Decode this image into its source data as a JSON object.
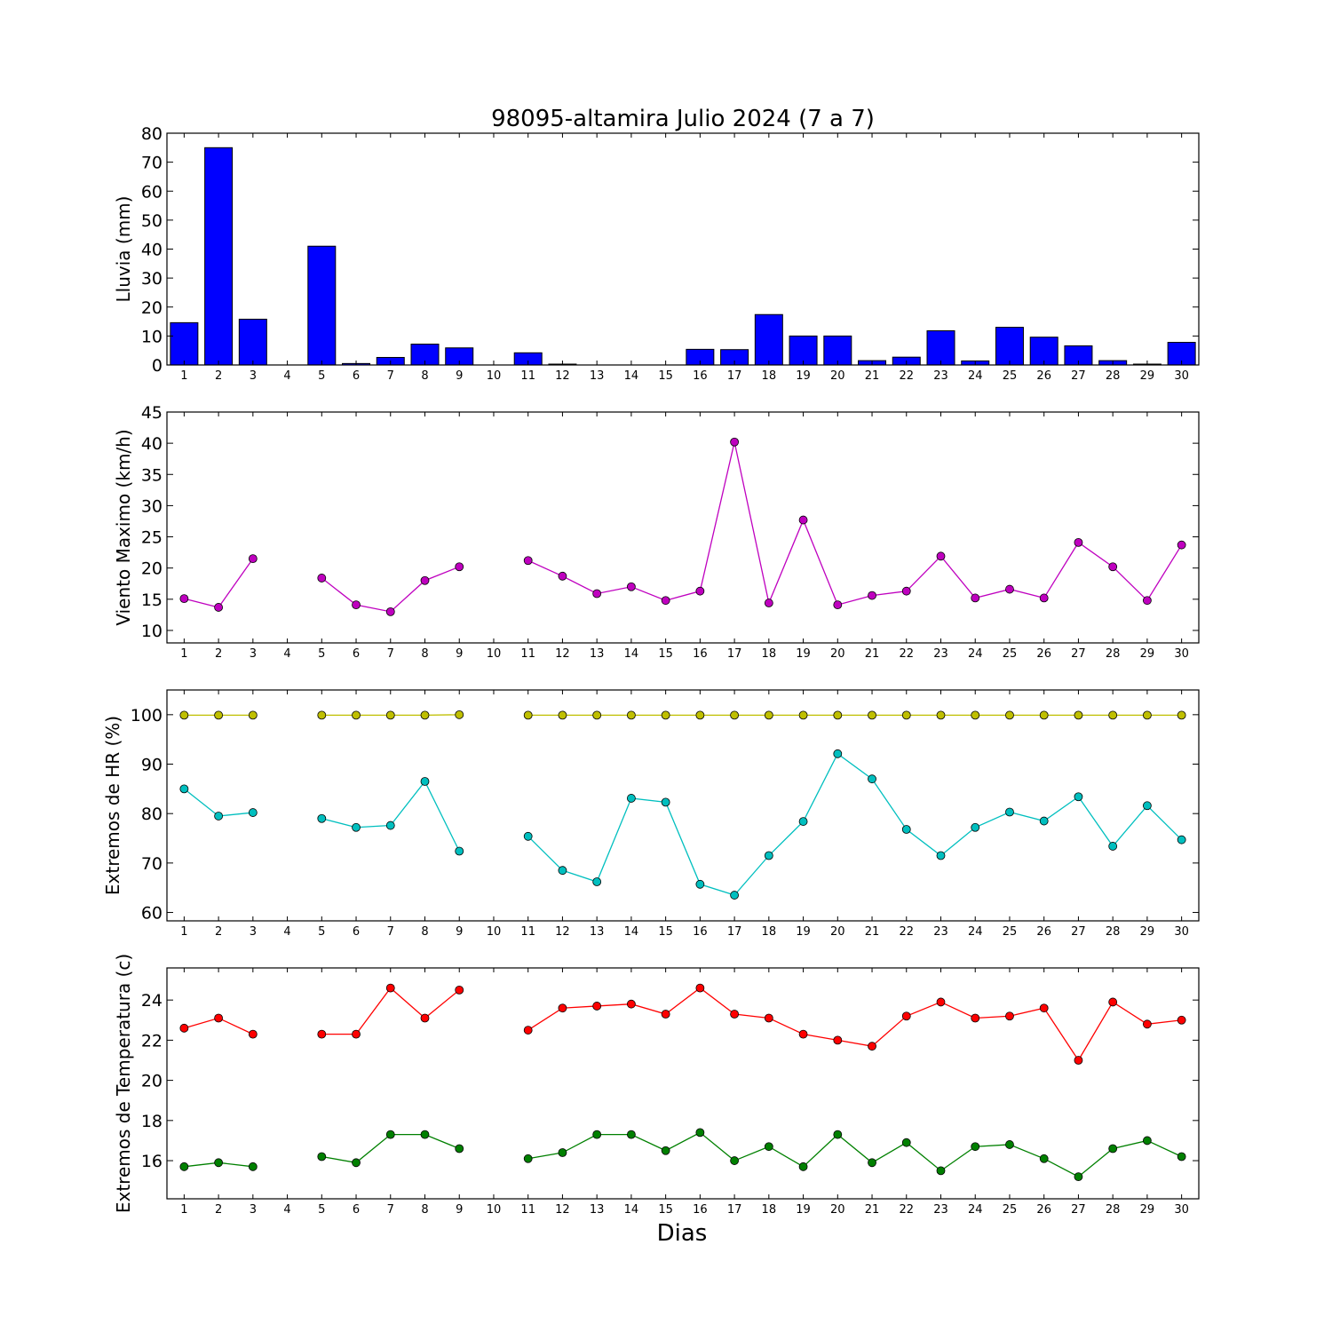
{
  "chart_data": [
    {
      "type": "bar",
      "title": "98095-altamira Julio 2024  (7 a 7)",
      "ylabel": "Lluvia (mm)",
      "xlabel": "",
      "x": [
        1,
        2,
        3,
        4,
        5,
        6,
        7,
        8,
        9,
        10,
        11,
        12,
        13,
        14,
        15,
        16,
        17,
        18,
        19,
        20,
        21,
        22,
        23,
        24,
        25,
        26,
        27,
        28,
        29,
        30
      ],
      "ylim": [
        0,
        80
      ],
      "yticks": [
        0,
        10,
        20,
        30,
        40,
        50,
        60,
        70,
        80
      ],
      "series": [
        {
          "values": [
            14.6,
            75.0,
            15.8,
            0,
            41.0,
            0.5,
            2.6,
            7.2,
            5.9,
            0,
            4.2,
            0.3,
            0,
            0,
            0,
            5.4,
            5.3,
            17.4,
            10.0,
            10.0,
            1.5,
            2.7,
            11.8,
            1.4,
            13.0,
            9.6,
            6.6,
            1.5,
            0.3,
            7.8
          ],
          "color": "#0000ff"
        }
      ]
    },
    {
      "type": "line",
      "title": "",
      "ylabel": "Viento Maximo (km/h)",
      "xlabel": "",
      "x": [
        1,
        2,
        3,
        4,
        5,
        6,
        7,
        8,
        9,
        10,
        11,
        12,
        13,
        14,
        15,
        16,
        17,
        18,
        19,
        20,
        21,
        22,
        23,
        24,
        25,
        26,
        27,
        28,
        29,
        30
      ],
      "ylim": [
        8,
        45
      ],
      "yticks": [
        10,
        15,
        20,
        25,
        30,
        35,
        40,
        45
      ],
      "series": [
        {
          "values": [
            15.1,
            13.7,
            21.5,
            null,
            18.4,
            14.1,
            13.0,
            18.0,
            20.2,
            null,
            21.2,
            18.7,
            15.9,
            17.0,
            14.8,
            16.3,
            40.2,
            14.4,
            27.7,
            14.1,
            15.6,
            16.3,
            21.9,
            15.2,
            16.6,
            15.2,
            24.1,
            20.2,
            14.8,
            23.7
          ],
          "color": "#bf00bf"
        }
      ]
    },
    {
      "type": "line",
      "title": "",
      "ylabel": "Extremos de HR (%)",
      "xlabel": "",
      "x": [
        1,
        2,
        3,
        4,
        5,
        6,
        7,
        8,
        9,
        10,
        11,
        12,
        13,
        14,
        15,
        16,
        17,
        18,
        19,
        20,
        21,
        22,
        23,
        24,
        25,
        26,
        27,
        28,
        29,
        30
      ],
      "ylim": [
        58.3,
        105
      ],
      "yticks": [
        60,
        70,
        80,
        90,
        100
      ],
      "series": [
        {
          "values": [
            99.9,
            99.9,
            99.9,
            null,
            99.9,
            99.9,
            99.9,
            99.9,
            100.0,
            null,
            99.9,
            99.9,
            99.9,
            99.9,
            99.9,
            99.9,
            99.9,
            99.9,
            99.9,
            99.9,
            99.9,
            99.9,
            99.9,
            99.9,
            99.9,
            99.9,
            99.9,
            99.9,
            99.9,
            99.9
          ],
          "color": "#bfbf00"
        },
        {
          "values": [
            85.0,
            79.5,
            80.2,
            null,
            79.0,
            77.2,
            77.6,
            86.5,
            72.4,
            null,
            75.4,
            68.5,
            66.2,
            83.1,
            82.3,
            65.7,
            63.5,
            71.5,
            78.4,
            92.1,
            87.0,
            76.8,
            71.5,
            77.2,
            80.3,
            78.5,
            83.4,
            73.4,
            81.6,
            74.7
          ],
          "color": "#00bfbf"
        }
      ]
    },
    {
      "type": "line",
      "title": "",
      "ylabel": "Extremos de Temperatura (c)",
      "xlabel": "Dias",
      "x": [
        1,
        2,
        3,
        4,
        5,
        6,
        7,
        8,
        9,
        10,
        11,
        12,
        13,
        14,
        15,
        16,
        17,
        18,
        19,
        20,
        21,
        22,
        23,
        24,
        25,
        26,
        27,
        28,
        29,
        30
      ],
      "ylim": [
        14.1,
        25.6
      ],
      "yticks": [
        16,
        18,
        20,
        22,
        24
      ],
      "series": [
        {
          "values": [
            22.6,
            23.1,
            22.3,
            null,
            22.3,
            22.3,
            24.6,
            23.1,
            24.5,
            null,
            22.5,
            23.6,
            23.7,
            23.8,
            23.3,
            24.6,
            23.3,
            23.1,
            22.3,
            22.0,
            21.7,
            23.2,
            23.9,
            23.1,
            23.2,
            23.6,
            21.0,
            23.9,
            22.8,
            23.0
          ],
          "color": "#ff0000"
        },
        {
          "values": [
            15.7,
            15.9,
            15.7,
            null,
            16.2,
            15.9,
            17.3,
            17.3,
            16.6,
            null,
            16.1,
            16.4,
            17.3,
            17.3,
            16.5,
            17.4,
            16.0,
            16.7,
            15.7,
            17.3,
            15.9,
            16.9,
            15.5,
            16.7,
            16.8,
            16.1,
            15.2,
            16.6,
            17.0,
            16.2
          ],
          "color": "#008000"
        }
      ]
    }
  ]
}
